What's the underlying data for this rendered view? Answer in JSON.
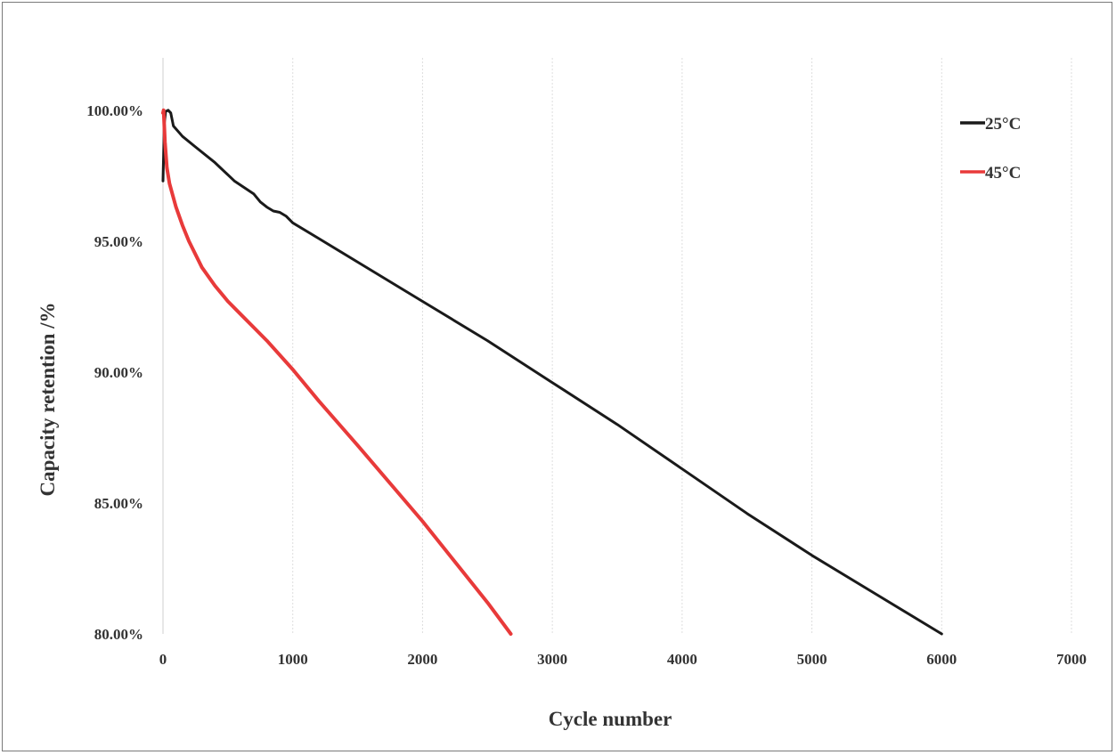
{
  "chart_data": {
    "type": "line",
    "xlabel": "Cycle number",
    "ylabel": "Capacity retention /%",
    "xlim": [
      0,
      7000
    ],
    "ylim": [
      80,
      102
    ],
    "x_ticks": [
      0,
      1000,
      2000,
      3000,
      4000,
      5000,
      6000,
      7000
    ],
    "x_tick_labels": [
      "0",
      "1000",
      "2000",
      "3000",
      "4000",
      "5000",
      "6000",
      "7000"
    ],
    "y_ticks": [
      80,
      85,
      90,
      95,
      100
    ],
    "y_tick_labels": [
      "80.00%",
      "85.00%",
      "90.00%",
      "95.00%",
      "100.00%"
    ],
    "grid": "vertical",
    "legend_position": "top-right",
    "series": [
      {
        "name": "25°C",
        "color": "#1a1a1a",
        "points": [
          [
            0,
            97.3
          ],
          [
            10,
            99.5
          ],
          [
            20,
            99.95
          ],
          [
            40,
            100.0
          ],
          [
            60,
            99.9
          ],
          [
            80,
            99.4
          ],
          [
            150,
            99.0
          ],
          [
            250,
            98.6
          ],
          [
            400,
            98.0
          ],
          [
            550,
            97.3
          ],
          [
            700,
            96.8
          ],
          [
            750,
            96.5
          ],
          [
            800,
            96.3
          ],
          [
            850,
            96.15
          ],
          [
            900,
            96.1
          ],
          [
            950,
            95.95
          ],
          [
            1000,
            95.7
          ],
          [
            1200,
            95.1
          ],
          [
            1500,
            94.2
          ],
          [
            2000,
            92.7
          ],
          [
            2500,
            91.2
          ],
          [
            3000,
            89.6
          ],
          [
            3500,
            88.0
          ],
          [
            4000,
            86.3
          ],
          [
            4500,
            84.6
          ],
          [
            5000,
            83.0
          ],
          [
            5500,
            81.5
          ],
          [
            6000,
            80.0
          ]
        ]
      },
      {
        "name": "45°C",
        "color": "#e83a3a",
        "points": [
          [
            0,
            99.9
          ],
          [
            5,
            100.0
          ],
          [
            15,
            98.8
          ],
          [
            30,
            97.8
          ],
          [
            50,
            97.2
          ],
          [
            100,
            96.3
          ],
          [
            150,
            95.6
          ],
          [
            200,
            95.0
          ],
          [
            300,
            94.0
          ],
          [
            400,
            93.3
          ],
          [
            500,
            92.7
          ],
          [
            600,
            92.2
          ],
          [
            700,
            91.7
          ],
          [
            800,
            91.2
          ],
          [
            1000,
            90.1
          ],
          [
            1200,
            88.9
          ],
          [
            1500,
            87.2
          ],
          [
            2000,
            84.3
          ],
          [
            2500,
            81.2
          ],
          [
            2680,
            80.0
          ]
        ]
      }
    ]
  }
}
